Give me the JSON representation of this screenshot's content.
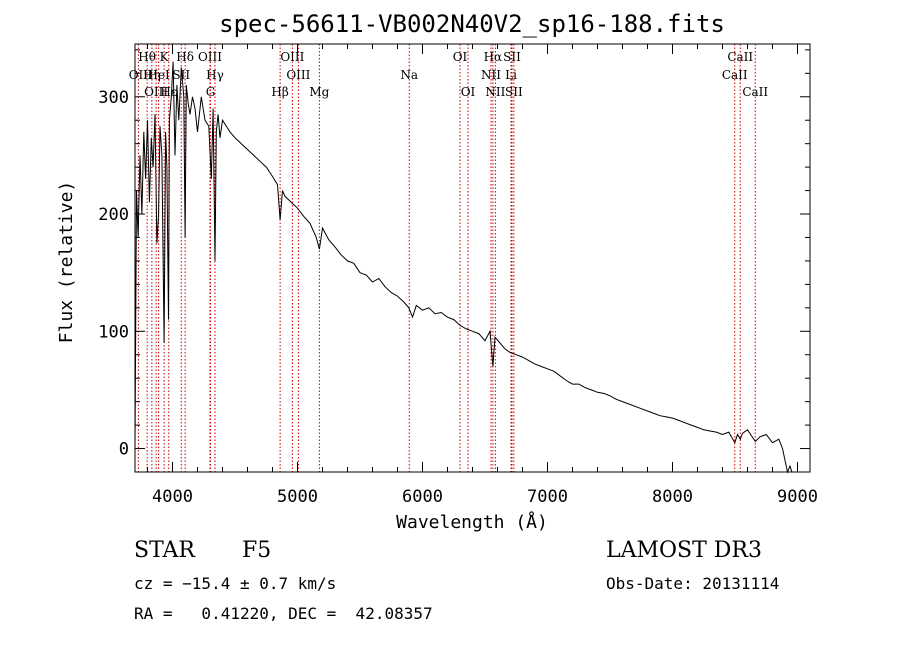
{
  "chart_data": {
    "type": "line",
    "title": "spec-56611-VB002N40V2_sp16-188.fits",
    "xlabel": "Wavelength (Å)",
    "ylabel": "Flux (relative)",
    "xlim": [
      3700,
      9100
    ],
    "ylim": [
      -20,
      345
    ],
    "xticks": [
      4000,
      5000,
      6000,
      7000,
      8000,
      9000
    ],
    "yticks": [
      0,
      100,
      200,
      300
    ],
    "x_minor_step": 200,
    "y_minor_step": 20,
    "series_color": "#000000",
    "line_color": "#cc0000",
    "series": [
      {
        "name": "flux",
        "x": [
          3700,
          3712,
          3725,
          3740,
          3755,
          3770,
          3785,
          3800,
          3815,
          3830,
          3845,
          3860,
          3875,
          3889,
          3900,
          3915,
          3933,
          3945,
          3955,
          3968,
          3975,
          3990,
          4005,
          4020,
          4035,
          4050,
          4070,
          4090,
          4101,
          4110,
          4125,
          4140,
          4160,
          4180,
          4200,
          4230,
          4260,
          4290,
          4310,
          4325,
          4340,
          4350,
          4365,
          4380,
          4400,
          4430,
          4460,
          4500,
          4550,
          4600,
          4650,
          4700,
          4750,
          4800,
          4840,
          4861,
          4880,
          4900,
          4950,
          5000,
          5050,
          5100,
          5150,
          5175,
          5200,
          5250,
          5300,
          5350,
          5400,
          5450,
          5500,
          5550,
          5600,
          5650,
          5700,
          5750,
          5800,
          5850,
          5890,
          5920,
          5950,
          6000,
          6050,
          6100,
          6150,
          6200,
          6250,
          6300,
          6350,
          6400,
          6450,
          6500,
          6540,
          6563,
          6580,
          6620,
          6660,
          6700,
          6750,
          6800,
          6850,
          6900,
          6950,
          7000,
          7050,
          7100,
          7150,
          7200,
          7250,
          7300,
          7350,
          7400,
          7450,
          7500,
          7550,
          7600,
          7650,
          7700,
          7750,
          7800,
          7850,
          7900,
          7950,
          8000,
          8050,
          8100,
          8150,
          8200,
          8250,
          8300,
          8350,
          8400,
          8450,
          8498,
          8520,
          8542,
          8560,
          8600,
          8662,
          8700,
          8750,
          8800,
          8850,
          8880,
          8900,
          8920,
          8940,
          8955
        ],
        "y": [
          0,
          220,
          180,
          250,
          200,
          270,
          230,
          280,
          210,
          265,
          240,
          285,
          175,
          200,
          275,
          250,
          90,
          270,
          240,
          110,
          280,
          300,
          330,
          250,
          310,
          280,
          325,
          300,
          180,
          310,
          295,
          285,
          300,
          290,
          270,
          300,
          280,
          275,
          230,
          290,
          160,
          270,
          285,
          265,
          280,
          275,
          270,
          265,
          260,
          255,
          250,
          245,
          240,
          232,
          225,
          195,
          220,
          215,
          210,
          205,
          198,
          192,
          180,
          170,
          188,
          178,
          172,
          165,
          160,
          158,
          150,
          148,
          142,
          145,
          138,
          133,
          130,
          125,
          120,
          112,
          122,
          118,
          120,
          115,
          116,
          112,
          110,
          105,
          102,
          100,
          98,
          92,
          100,
          70,
          95,
          90,
          85,
          82,
          80,
          78,
          75,
          72,
          70,
          68,
          66,
          62,
          58,
          55,
          55,
          52,
          50,
          48,
          47,
          45,
          42,
          40,
          38,
          36,
          34,
          32,
          30,
          28,
          27,
          26,
          24,
          22,
          20,
          18,
          16,
          15,
          14,
          12,
          14,
          5,
          12,
          8,
          13,
          16,
          6,
          10,
          12,
          5,
          8,
          0,
          -10,
          -20,
          -15,
          -20
        ]
      }
    ],
    "spectral_lines": [
      {
        "label": "Hθ",
        "x": 3797,
        "row": 0
      },
      {
        "label": "OII",
        "x": 3727,
        "row": 1
      },
      {
        "label": "Hη",
        "x": 3835,
        "row": 1
      },
      {
        "label": "OIII",
        "x": 3869,
        "row": 2
      },
      {
        "label": "HeI",
        "x": 3889,
        "row": 1
      },
      {
        "label": "K",
        "x": 3933,
        "row": 0
      },
      {
        "label": "Hε",
        "x": 3970,
        "row": 2
      },
      {
        "label": "SII",
        "x": 4070,
        "row": 1
      },
      {
        "label": "Hδ",
        "x": 4101,
        "row": 0
      },
      {
        "label": "OIII",
        "x": 4300,
        "row": 0
      },
      {
        "label": "Hγ",
        "x": 4340,
        "row": 1
      },
      {
        "label": "G",
        "x": 4304,
        "row": 2
      },
      {
        "label": "Hβ",
        "x": 4861,
        "row": 2
      },
      {
        "label": "OIII",
        "x": 4959,
        "row": 0
      },
      {
        "label": "OIII",
        "x": 5007,
        "row": 1
      },
      {
        "label": "Mg",
        "x": 5175,
        "row": 2
      },
      {
        "label": "Na",
        "x": 5894,
        "row": 1
      },
      {
        "label": "OI",
        "x": 6300,
        "row": 0
      },
      {
        "label": "OI",
        "x": 6364,
        "row": 2
      },
      {
        "label": "Hα",
        "x": 6563,
        "row": 0
      },
      {
        "label": "NII",
        "x": 6548,
        "row": 1
      },
      {
        "label": "NII",
        "x": 6583,
        "row": 2
      },
      {
        "label": "SII",
        "x": 6716,
        "row": 0
      },
      {
        "label": "Li",
        "x": 6708,
        "row": 1
      },
      {
        "label": "SII",
        "x": 6731,
        "row": 2
      },
      {
        "label": "CaII",
        "x": 8542,
        "row": 0
      },
      {
        "label": "CaII",
        "x": 8498,
        "row": 1
      },
      {
        "label": "CaII",
        "x": 8662,
        "row": 2
      }
    ]
  },
  "info": {
    "object_class": "STAR",
    "subclass": "F5",
    "survey": "LAMOST DR3",
    "velocity": "cz = −15.4 ± 0.7 km/s",
    "obs_date": "Obs-Date: 20131114",
    "coords": "RA =   0.41220, DEC =  42.08357"
  }
}
